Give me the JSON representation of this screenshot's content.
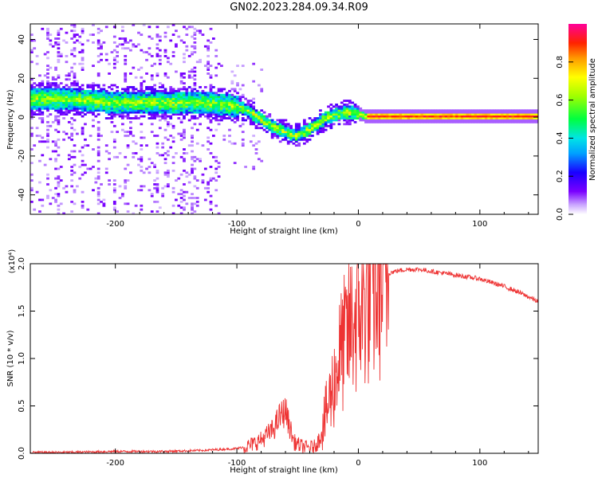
{
  "title": "GN02.2023.284.09.34.R09",
  "chart_data": [
    {
      "type": "heatmap",
      "xlabel": "Height of straight line (km)",
      "ylabel": "Frequency (Hz)",
      "xlim": [
        -270,
        148
      ],
      "ylim": [
        -50,
        48
      ],
      "xticks": [
        -200,
        -100,
        0,
        100
      ],
      "xtick_labels": [
        "-200",
        "-100",
        "0",
        "100"
      ],
      "yticks": [
        -40,
        -20,
        0,
        20,
        40
      ],
      "ytick_labels": [
        "-40",
        "-20",
        "0",
        "20",
        "40"
      ],
      "colorbar": {
        "label": "Normalized spectral amplitude",
        "range": [
          0,
          1
        ],
        "ticks": [
          0.0,
          0.2,
          0.4,
          0.6,
          0.8
        ],
        "tick_labels": [
          "0.0",
          "0.2",
          "0.4",
          "0.6",
          "0.8"
        ]
      },
      "ridge_frequency": {
        "x": [
          -270,
          -240,
          -200,
          -160,
          -130,
          -110,
          -95,
          -85,
          -75,
          -65,
          -58,
          -52,
          -45,
          -40,
          -35,
          -28,
          -20,
          -12,
          -5,
          0,
          5,
          20,
          50,
          100,
          148
        ],
        "y": [
          9,
          9,
          7,
          7,
          7,
          6,
          4,
          0,
          -4,
          -7,
          -9,
          -10,
          -8,
          -6,
          -4,
          -1,
          1,
          2,
          2,
          1,
          0,
          0,
          0,
          0,
          0
        ]
      }
    },
    {
      "type": "line",
      "xlabel": "Height of straight line (km)",
      "ylabel": "SNR (10 * v/v)",
      "y_multiplier": "(x10⁴)",
      "xlim": [
        -270,
        148
      ],
      "ylim": [
        0,
        2.0
      ],
      "xticks": [
        -200,
        -100,
        0,
        100
      ],
      "xtick_labels": [
        "-200",
        "-100",
        "0",
        "100"
      ],
      "yticks": [
        0,
        0.5,
        1.0,
        1.5,
        2.0
      ],
      "ytick_labels": [
        "0.0",
        "0.5",
        "1.0",
        "1.5",
        "2.0"
      ],
      "color": "#ee3333",
      "series": [
        {
          "x": [
            -270,
            -240,
            -200,
            -160,
            -130,
            -115,
            -100,
            -90,
            -80,
            -70,
            -65,
            -60,
            -57,
            -53,
            -48,
            -42,
            -36,
            -32,
            -28,
            -24,
            -20,
            -16,
            -12,
            -8,
            -4,
            0,
            5,
            10,
            15,
            20,
            25,
            30,
            40,
            50,
            60,
            70,
            80,
            90,
            100,
            110,
            120,
            130,
            140,
            148
          ],
          "y": [
            0.01,
            0.01,
            0.02,
            0.02,
            0.03,
            0.04,
            0.05,
            0.08,
            0.14,
            0.25,
            0.38,
            0.45,
            0.3,
            0.12,
            0.08,
            0.06,
            0.07,
            0.15,
            0.35,
            0.55,
            0.75,
            1.0,
            1.15,
            1.28,
            1.4,
            1.5,
            1.6,
            1.72,
            1.8,
            1.86,
            1.9,
            1.92,
            1.94,
            1.94,
            1.92,
            1.9,
            1.88,
            1.86,
            1.84,
            1.8,
            1.76,
            1.71,
            1.65,
            1.6
          ]
        }
      ]
    }
  ]
}
